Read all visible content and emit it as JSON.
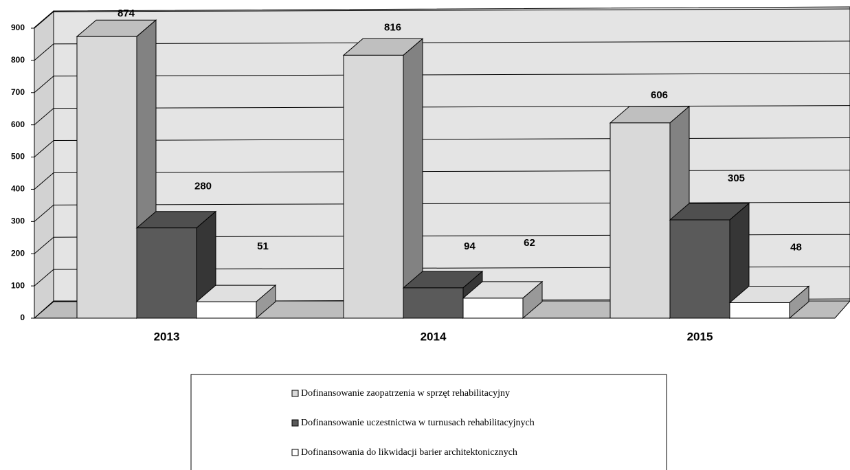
{
  "chart_data": {
    "type": "bar3d",
    "categories": [
      "2013",
      "2014",
      "2015"
    ],
    "series": [
      {
        "name": "Dofinansowanie zaopatrzenia w sprzęt rehabilitacyjny",
        "color": "#d9d9d9",
        "values": [
          874,
          816,
          606
        ]
      },
      {
        "name": "Dofinansowanie uczestnictwa w turnusach rehabilitacyjnych",
        "color": "#5a5a5a",
        "values": [
          280,
          94,
          305
        ]
      },
      {
        "name": "Dofinansowania do likwidacji barier architektonicznych",
        "color": "#ffffff",
        "values": [
          51,
          62,
          48
        ]
      }
    ],
    "ylim": [
      0,
      900
    ],
    "yticks": [
      0,
      100,
      200,
      300,
      400,
      500,
      600,
      700,
      800,
      900
    ],
    "grid": true,
    "legend": "bottom"
  }
}
